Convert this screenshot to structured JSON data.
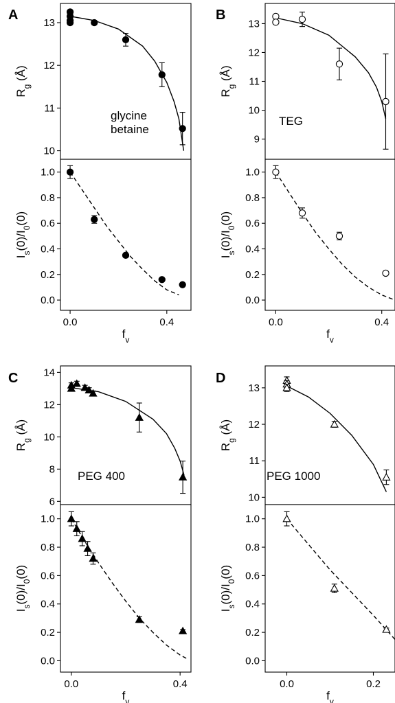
{
  "chart_data": [
    {
      "panel": "A",
      "annotation": [
        "glycine",
        "betaine"
      ],
      "xlabel": "fv",
      "xlim": [
        -0.04,
        0.5
      ],
      "xticks": [
        "0.0",
        "0.4"
      ],
      "top": {
        "type": "scatter",
        "ylabel": "Rg (Å)",
        "ylim": [
          9.8,
          13.45
        ],
        "yticks": [
          10,
          11,
          12,
          13
        ],
        "marker": "filled-circle",
        "points": [
          {
            "x": 0.0,
            "y": 13.25,
            "err": 0.05
          },
          {
            "x": 0.0,
            "y": 13.15,
            "err": 0.05
          },
          {
            "x": 0.0,
            "y": 13.05,
            "err": 0.05
          },
          {
            "x": 0.0,
            "y": 13.0,
            "err": 0.05
          },
          {
            "x": 0.1,
            "y": 13.0,
            "err": 0.05
          },
          {
            "x": 0.23,
            "y": 12.6,
            "err": 0.15
          },
          {
            "x": 0.38,
            "y": 11.78,
            "err": 0.28
          },
          {
            "x": 0.465,
            "y": 10.52,
            "err": 0.38
          }
        ],
        "fit": {
          "style": "solid",
          "x": [
            0,
            0.1,
            0.2,
            0.3,
            0.35,
            0.4,
            0.43,
            0.45,
            0.47
          ],
          "y": [
            13.15,
            13.05,
            12.85,
            12.45,
            12.1,
            11.6,
            11.15,
            10.75,
            10.0
          ]
        }
      },
      "bottom": {
        "type": "scatter",
        "ylabel": "Is(0)/I0(0)",
        "ylim": [
          -0.08,
          1.1
        ],
        "yticks": [
          "0.0",
          "0.2",
          "0.4",
          "0.6",
          "0.8",
          "1.0"
        ],
        "marker": "filled-circle",
        "points": [
          {
            "x": 0.0,
            "y": 1.0,
            "err": 0.05
          },
          {
            "x": 0.1,
            "y": 0.63,
            "err": 0.03
          },
          {
            "x": 0.23,
            "y": 0.35,
            "err": 0.015
          },
          {
            "x": 0.38,
            "y": 0.16,
            "err": 0.01
          },
          {
            "x": 0.465,
            "y": 0.12,
            "err": 0.01
          }
        ],
        "fit": {
          "style": "dashed",
          "x": [
            0,
            0.05,
            0.1,
            0.15,
            0.2,
            0.25,
            0.3,
            0.35,
            0.4,
            0.45
          ],
          "y": [
            1.0,
            0.86,
            0.72,
            0.58,
            0.46,
            0.34,
            0.24,
            0.15,
            0.08,
            0.04
          ]
        }
      }
    },
    {
      "panel": "B",
      "annotation": [
        "TEG"
      ],
      "xlabel": "fv",
      "xlim": [
        -0.04,
        0.45
      ],
      "xticks": [
        "0.0",
        "0.4"
      ],
      "top": {
        "type": "scatter",
        "ylabel": "Rg (Å)",
        "ylim": [
          8.3,
          13.7
        ],
        "yticks": [
          9,
          10,
          11,
          12,
          13
        ],
        "marker": "open-circle",
        "points": [
          {
            "x": 0.0,
            "y": 13.25,
            "err": 0.05
          },
          {
            "x": 0.0,
            "y": 13.05,
            "err": 0.05
          },
          {
            "x": 0.1,
            "y": 13.15,
            "err": 0.25
          },
          {
            "x": 0.24,
            "y": 11.6,
            "err": 0.55
          },
          {
            "x": 0.415,
            "y": 10.3,
            "err": 1.65
          }
        ],
        "fit": {
          "style": "solid",
          "x": [
            0,
            0.1,
            0.2,
            0.3,
            0.35,
            0.38,
            0.4,
            0.415
          ],
          "y": [
            13.2,
            13.0,
            12.6,
            11.85,
            11.3,
            10.8,
            10.3,
            9.7
          ]
        }
      },
      "bottom": {
        "type": "scatter",
        "ylabel": "Is(0)/I0(0)",
        "ylim": [
          -0.08,
          1.1
        ],
        "yticks": [
          "0.0",
          "0.2",
          "0.4",
          "0.6",
          "0.8",
          "1.0"
        ],
        "marker": "open-circle",
        "points": [
          {
            "x": 0.0,
            "y": 1.0,
            "err": 0.05
          },
          {
            "x": 0.1,
            "y": 0.68,
            "err": 0.04
          },
          {
            "x": 0.24,
            "y": 0.5,
            "err": 0.03
          },
          {
            "x": 0.415,
            "y": 0.21,
            "err": 0.01
          }
        ],
        "fit": {
          "style": "dashed",
          "x": [
            0,
            0.05,
            0.1,
            0.15,
            0.2,
            0.25,
            0.3,
            0.35,
            0.4,
            0.45
          ],
          "y": [
            1.0,
            0.84,
            0.68,
            0.53,
            0.4,
            0.28,
            0.18,
            0.1,
            0.04,
            0.0
          ]
        }
      }
    },
    {
      "panel": "C",
      "annotation": [
        "PEG 400"
      ],
      "xlabel": "fv",
      "xlim": [
        -0.04,
        0.44
      ],
      "xticks": [
        "0.0",
        "0.4"
      ],
      "top": {
        "type": "scatter",
        "ylabel": "Rg (Å)",
        "ylim": [
          5.8,
          14.4
        ],
        "yticks": [
          6,
          8,
          10,
          12,
          14
        ],
        "marker": "filled-triangle",
        "points": [
          {
            "x": 0.0,
            "y": 13.2,
            "err": 0.15
          },
          {
            "x": 0.0,
            "y": 13.0,
            "err": 0.15
          },
          {
            "x": 0.02,
            "y": 13.3,
            "err": 0.15
          },
          {
            "x": 0.05,
            "y": 13.05,
            "err": 0.15
          },
          {
            "x": 0.065,
            "y": 12.9,
            "err": 0.15
          },
          {
            "x": 0.08,
            "y": 12.7,
            "err": 0.15
          },
          {
            "x": 0.25,
            "y": 11.2,
            "err": 0.9
          },
          {
            "x": 0.41,
            "y": 7.5,
            "err": 1.0
          }
        ],
        "fit": {
          "style": "solid",
          "x": [
            0,
            0.1,
            0.2,
            0.3,
            0.35,
            0.38,
            0.4,
            0.415
          ],
          "y": [
            13.05,
            12.8,
            12.2,
            11.1,
            10.2,
            9.3,
            8.5,
            7.6
          ]
        }
      },
      "bottom": {
        "type": "scatter",
        "ylabel": "Is(0)/I0(0)",
        "ylim": [
          -0.08,
          1.1
        ],
        "yticks": [
          "0.0",
          "0.2",
          "0.4",
          "0.6",
          "0.8",
          "1.0"
        ],
        "marker": "filled-triangle",
        "points": [
          {
            "x": 0.0,
            "y": 1.0,
            "err": 0.05
          },
          {
            "x": 0.02,
            "y": 0.93,
            "err": 0.05
          },
          {
            "x": 0.04,
            "y": 0.86,
            "err": 0.05
          },
          {
            "x": 0.06,
            "y": 0.79,
            "err": 0.05
          },
          {
            "x": 0.08,
            "y": 0.72,
            "err": 0.04
          },
          {
            "x": 0.25,
            "y": 0.29,
            "err": 0.02
          },
          {
            "x": 0.41,
            "y": 0.21,
            "err": 0.01
          }
        ],
        "fit": {
          "style": "dashed",
          "x": [
            0,
            0.05,
            0.1,
            0.15,
            0.2,
            0.25,
            0.3,
            0.35,
            0.4,
            0.43
          ],
          "y": [
            1.0,
            0.84,
            0.69,
            0.55,
            0.42,
            0.3,
            0.2,
            0.11,
            0.04,
            0.01
          ]
        }
      }
    },
    {
      "panel": "D",
      "annotation": [
        "PEG 1000"
      ],
      "xlabel": "fv",
      "xlim": [
        -0.05,
        0.25
      ],
      "xticks": [
        "0.0",
        "0.2"
      ],
      "top": {
        "type": "scatter",
        "ylabel": "Rg (Å)",
        "ylim": [
          9.8,
          13.6
        ],
        "yticks": [
          10,
          11,
          12,
          13
        ],
        "marker": "open-triangle",
        "points": [
          {
            "x": 0.0,
            "y": 13.2,
            "err": 0.1
          },
          {
            "x": 0.0,
            "y": 13.1,
            "err": 0.1
          },
          {
            "x": 0.0,
            "y": 13.0,
            "err": 0.1
          },
          {
            "x": 0.11,
            "y": 12.0,
            "err": 0.08
          },
          {
            "x": 0.23,
            "y": 10.55,
            "err": 0.2
          }
        ],
        "fit": {
          "style": "solid",
          "x": [
            0,
            0.05,
            0.1,
            0.15,
            0.2,
            0.23
          ],
          "y": [
            13.05,
            12.75,
            12.3,
            11.7,
            10.9,
            10.15
          ]
        }
      },
      "bottom": {
        "type": "scatter",
        "ylabel": "Is(0)/I0(0)",
        "ylim": [
          -0.08,
          1.1
        ],
        "yticks": [
          "0.0",
          "0.2",
          "0.4",
          "0.6",
          "0.8",
          "1.0"
        ],
        "marker": "open-triangle",
        "points": [
          {
            "x": 0.0,
            "y": 1.0,
            "err": 0.05
          },
          {
            "x": 0.11,
            "y": 0.51,
            "err": 0.03
          },
          {
            "x": 0.23,
            "y": 0.22,
            "err": 0.01
          }
        ],
        "fit": {
          "style": "dashed",
          "x": [
            0,
            0.05,
            0.1,
            0.15,
            0.2,
            0.25
          ],
          "y": [
            1.0,
            0.82,
            0.64,
            0.48,
            0.32,
            0.15
          ]
        }
      }
    }
  ]
}
